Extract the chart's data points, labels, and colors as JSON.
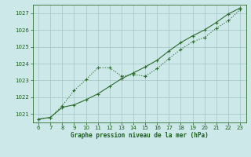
{
  "line1_x": [
    6,
    7,
    8,
    9,
    10,
    11,
    12,
    13,
    14,
    15,
    16,
    17,
    18,
    19,
    20,
    21,
    22,
    23
  ],
  "line1_y": [
    1020.7,
    1020.8,
    1021.5,
    1022.4,
    1023.05,
    1023.75,
    1023.75,
    1023.25,
    1023.35,
    1023.25,
    1023.7,
    1024.3,
    1024.85,
    1025.3,
    1025.55,
    1026.1,
    1026.55,
    1027.2
  ],
  "line2_x": [
    6,
    7,
    8,
    9,
    10,
    11,
    12,
    13,
    14,
    15,
    16,
    17,
    18,
    19,
    20,
    21,
    22,
    23
  ],
  "line2_y": [
    1020.7,
    1020.8,
    1021.4,
    1021.55,
    1021.85,
    1022.2,
    1022.65,
    1023.1,
    1023.45,
    1023.8,
    1024.2,
    1024.75,
    1025.25,
    1025.65,
    1026.0,
    1026.45,
    1026.95,
    1027.3
  ],
  "line_color": "#2d6a2d",
  "bg_color": "#cce8e8",
  "grid_color": "#aacaca",
  "xlabel": "Graphe pression niveau de la mer (hPa)",
  "xlabel_color": "#1a5c1a",
  "tick_color": "#1a5c1a",
  "xlim": [
    5.5,
    23.5
  ],
  "ylim": [
    1020.5,
    1027.5
  ],
  "yticks": [
    1021,
    1022,
    1023,
    1024,
    1025,
    1026,
    1027
  ],
  "xticks": [
    6,
    7,
    8,
    9,
    10,
    11,
    12,
    13,
    14,
    15,
    16,
    17,
    18,
    19,
    20,
    21,
    22,
    23
  ]
}
